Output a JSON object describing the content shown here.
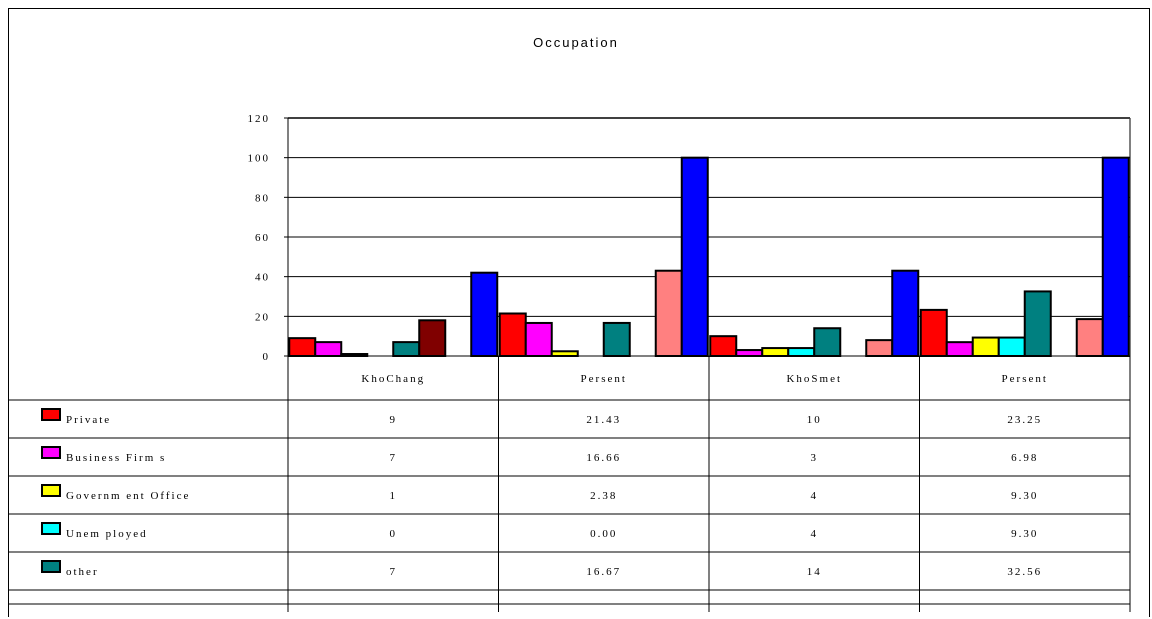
{
  "chart_data": {
    "type": "bar",
    "title": "Occupation",
    "categories": [
      "KhoChang",
      "Persent",
      "KhoSmet",
      "Persent"
    ],
    "ylim": [
      0,
      120
    ],
    "yticks": [
      "0",
      "20",
      "40",
      "60",
      "80",
      "100",
      "120"
    ],
    "grid": true,
    "series": [
      {
        "name": "Private",
        "color": "#ff0000",
        "values": [
          9,
          21.43,
          10,
          23.25
        ],
        "labels": [
          "9",
          "21.43",
          "10",
          "23.25"
        ],
        "in_table": true
      },
      {
        "name": "Business Firm s",
        "color": "#ff00ff",
        "values": [
          7,
          16.66,
          3,
          6.98
        ],
        "labels": [
          "7",
          "16.66",
          "3",
          "6.98"
        ],
        "in_table": true
      },
      {
        "name": "Governm ent Office",
        "color": "#ffff00",
        "values": [
          1,
          2.38,
          4,
          9.3
        ],
        "labels": [
          "1",
          "2.38",
          "4",
          "9.30"
        ],
        "in_table": true
      },
      {
        "name": "Unem ployed",
        "color": "#00ffff",
        "values": [
          0,
          0.0,
          4,
          9.3
        ],
        "labels": [
          "0",
          "0.00",
          "4",
          "9.30"
        ],
        "in_table": true
      },
      {
        "name": "other",
        "color": "#008080",
        "values": [
          7,
          16.67,
          14,
          32.56
        ],
        "labels": [
          "7",
          "16.67",
          "14",
          "32.56"
        ],
        "in_table": true
      },
      {
        "color": "#800000",
        "values": [
          18,
          null,
          null,
          null
        ],
        "in_table": false
      },
      {
        "color": "#ff8080",
        "values": [
          null,
          43,
          8,
          18.6
        ],
        "in_table": false
      },
      {
        "color": "#0000ff",
        "values": [
          42,
          100,
          43,
          100
        ],
        "in_table": false
      }
    ]
  }
}
